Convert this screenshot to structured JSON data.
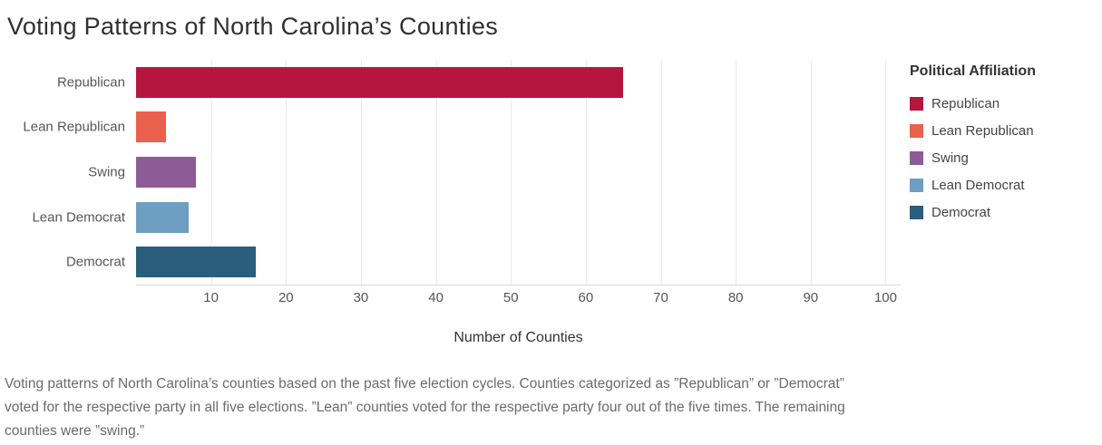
{
  "title": "Voting Patterns of North Carolina’s Counties",
  "chart_data": {
    "type": "bar",
    "orientation": "horizontal",
    "title": "Voting Patterns of North Carolina’s Counties",
    "categories": [
      "Republican",
      "Lean Republican",
      "Swing",
      "Lean Democrat",
      "Democrat"
    ],
    "values": [
      65,
      4,
      8,
      7,
      16
    ],
    "colors": [
      "#b6163d",
      "#e9614d",
      "#8d5b96",
      "#6e9ec2",
      "#2b5d7d"
    ],
    "xlabel": "Number of Counties",
    "ylabel": "Political Affiliation",
    "xlim": [
      0,
      102
    ],
    "xticks": [
      10,
      20,
      30,
      40,
      50,
      60,
      70,
      80,
      90,
      100
    ],
    "grid": "vertical-only",
    "legend_position": "right"
  },
  "legend": {
    "title": "Political Affiliation",
    "items": [
      {
        "label": "Republican",
        "color": "#b6163d"
      },
      {
        "label": "Lean Republican",
        "color": "#e9614d"
      },
      {
        "label": "Swing",
        "color": "#8d5b96"
      },
      {
        "label": "Lean Democrat",
        "color": "#6e9ec2"
      },
      {
        "label": "Democrat",
        "color": "#2b5d7d"
      }
    ]
  },
  "caption": "Voting patterns of North Carolina’s counties based on the past five election cycles. Counties categorized as ”Republican” or ”Democrat” voted for the respective party in all five elections. ”Lean” counties voted for the respective party four out of the five times. The remaining counties were ”swing.”"
}
